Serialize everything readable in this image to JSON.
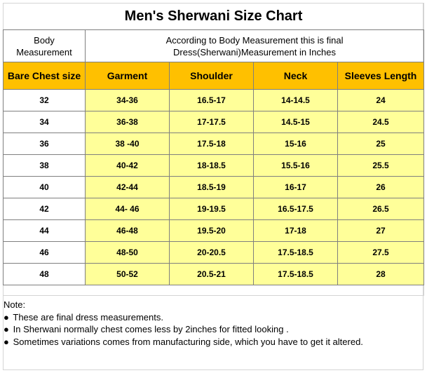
{
  "title": "Men's Sherwani Size Chart",
  "header": {
    "body_measurement": "Body Measurement",
    "body_line1": "Body",
    "body_line2": "Measurement",
    "final_line1": "According to Body Measurement this is final",
    "final_line2": "Dress(Sherwani)Measurement in Inches"
  },
  "columns": [
    "Bare Chest size",
    "Garment",
    "Shoulder",
    "Neck",
    "Sleeves Length"
  ],
  "rows": [
    [
      "32",
      "34-36",
      "16.5-17",
      "14-14.5",
      "24"
    ],
    [
      "34",
      "36-38",
      "17-17.5",
      "14.5-15",
      "24.5"
    ],
    [
      "36",
      "38 -40",
      "17.5-18",
      "15-16",
      "25"
    ],
    [
      "38",
      "40-42",
      "18-18.5",
      "15.5-16",
      "25.5"
    ],
    [
      "40",
      "42-44",
      "18.5-19",
      "16-17",
      "26"
    ],
    [
      "42",
      "44- 46",
      "19-19.5",
      "16.5-17.5",
      "26.5"
    ],
    [
      "44",
      "46-48",
      "19.5-20",
      "17-18",
      "27"
    ],
    [
      "46",
      "48-50",
      "20-20.5",
      "17.5-18.5",
      "27.5"
    ],
    [
      "48",
      "50-52",
      "20.5-21",
      "17.5-18.5",
      "28"
    ]
  ],
  "notes": {
    "heading": "Note:",
    "bullet_char": "●",
    "items": [
      "These are final dress measurements.",
      "In Sherwani normally chest comes less by 2inches for fitted looking .",
      "Sometimes variations comes from manufacturing side, which you have to get it altered."
    ]
  },
  "colors": {
    "header_fill": "#ffc000",
    "cell_fill": "#ffff99",
    "grid": "#7f7f7f"
  }
}
